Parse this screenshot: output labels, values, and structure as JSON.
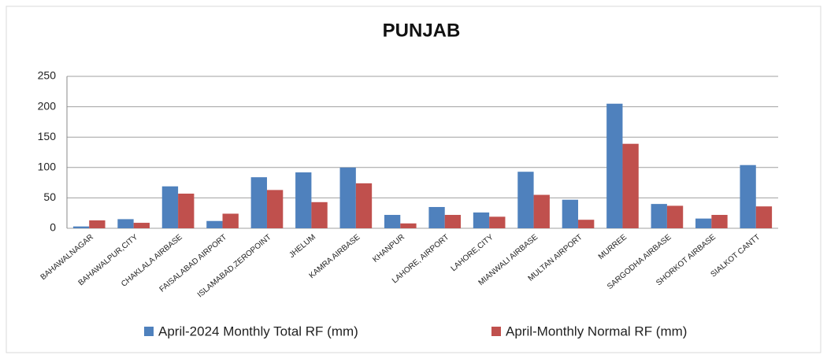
{
  "chart_data": {
    "type": "bar",
    "title": "PUNJAB",
    "categories": [
      "BAHAWALNAGAR",
      "BAHAWALPUR,CITY",
      "CHAKLALA AIRBASE",
      "FAISALABAD AIRPORT",
      "ISLAMABAD,ZEROPOINT",
      "JHELUM",
      "KAMRA AIRBASE",
      "KHANPUR",
      "LAHORE, AIRPORT",
      "LAHORE,CITY",
      "MIANWALI AIRBASE",
      "MULTAN AIRPORT",
      "MURREE",
      "SARGODHA AIRBASE",
      "SHORKOT AIRBASE",
      "SIALKOT CANTT"
    ],
    "series": [
      {
        "name": "April-2024 Monthly Total RF (mm)",
        "color": "#4f81bd",
        "values": [
          3,
          15,
          69,
          12,
          84,
          92,
          100,
          22,
          35,
          26,
          93,
          47,
          205,
          40,
          16,
          104
        ]
      },
      {
        "name": "April-Monthly Normal RF (mm)",
        "color": "#c0504d",
        "values": [
          13,
          9,
          57,
          24,
          63,
          43,
          74,
          8,
          22,
          19,
          55,
          14,
          139,
          37,
          22,
          36
        ]
      }
    ],
    "ylim": [
      0,
      250
    ],
    "yticks": [
      0,
      50,
      100,
      150,
      200,
      250
    ],
    "grid": true,
    "legend": "bottom"
  }
}
